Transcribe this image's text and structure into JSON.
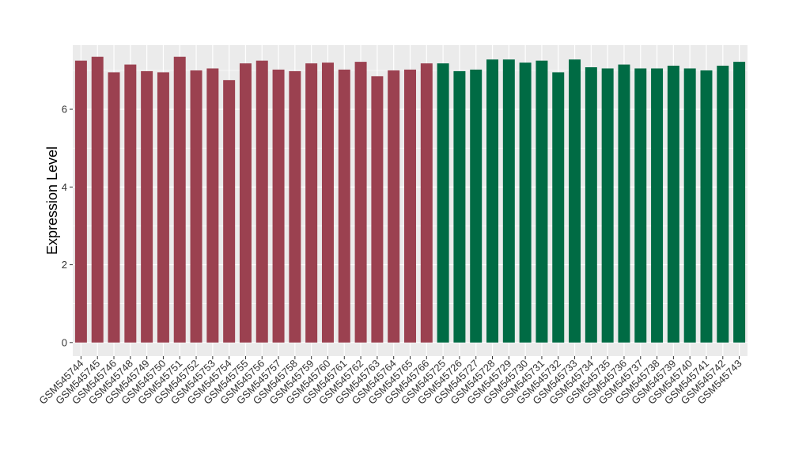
{
  "chart_data": {
    "type": "bar",
    "ylabel": "Expression Level",
    "xlabel": "",
    "ylim": [
      -0.35,
      7.65
    ],
    "yticks": [
      0,
      2,
      4,
      6
    ],
    "grid": true,
    "background": "#ebebeb",
    "categories": [
      "GSM545744",
      "GSM545745",
      "GSM545746",
      "GSM545748",
      "GSM545749",
      "GSM545750",
      "GSM545751",
      "GSM545752",
      "GSM545753",
      "GSM545754",
      "GSM545755",
      "GSM545756",
      "GSM545757",
      "GSM545758",
      "GSM545759",
      "GSM545760",
      "GSM545761",
      "GSM545762",
      "GSM545763",
      "GSM545764",
      "GSM545765",
      "GSM545766",
      "GSM545725",
      "GSM545726",
      "GSM545727",
      "GSM545728",
      "GSM545729",
      "GSM545730",
      "GSM545731",
      "GSM545732",
      "GSM545733",
      "GSM545734",
      "GSM545735",
      "GSM545736",
      "GSM545737",
      "GSM545738",
      "GSM545739",
      "GSM545740",
      "GSM545741",
      "GSM545742",
      "GSM545743"
    ],
    "values": [
      7.25,
      7.35,
      6.95,
      7.15,
      6.98,
      6.95,
      7.35,
      7.0,
      7.05,
      6.75,
      7.18,
      7.25,
      7.02,
      6.98,
      7.18,
      7.2,
      7.02,
      7.22,
      6.85,
      7.0,
      7.02,
      7.18,
      7.18,
      6.98,
      7.02,
      7.28,
      7.28,
      7.2,
      7.25,
      6.95,
      7.28,
      7.08,
      7.05,
      7.15,
      7.05,
      7.05,
      7.12,
      7.05,
      7.0,
      7.12,
      7.22
    ],
    "groups": [
      0,
      0,
      0,
      0,
      0,
      0,
      0,
      0,
      0,
      0,
      0,
      0,
      0,
      0,
      0,
      0,
      0,
      0,
      0,
      0,
      0,
      0,
      1,
      1,
      1,
      1,
      1,
      1,
      1,
      1,
      1,
      1,
      1,
      1,
      1,
      1,
      1,
      1,
      1,
      1,
      1
    ],
    "group_colors": [
      "#9b4150",
      "#006b44"
    ]
  }
}
